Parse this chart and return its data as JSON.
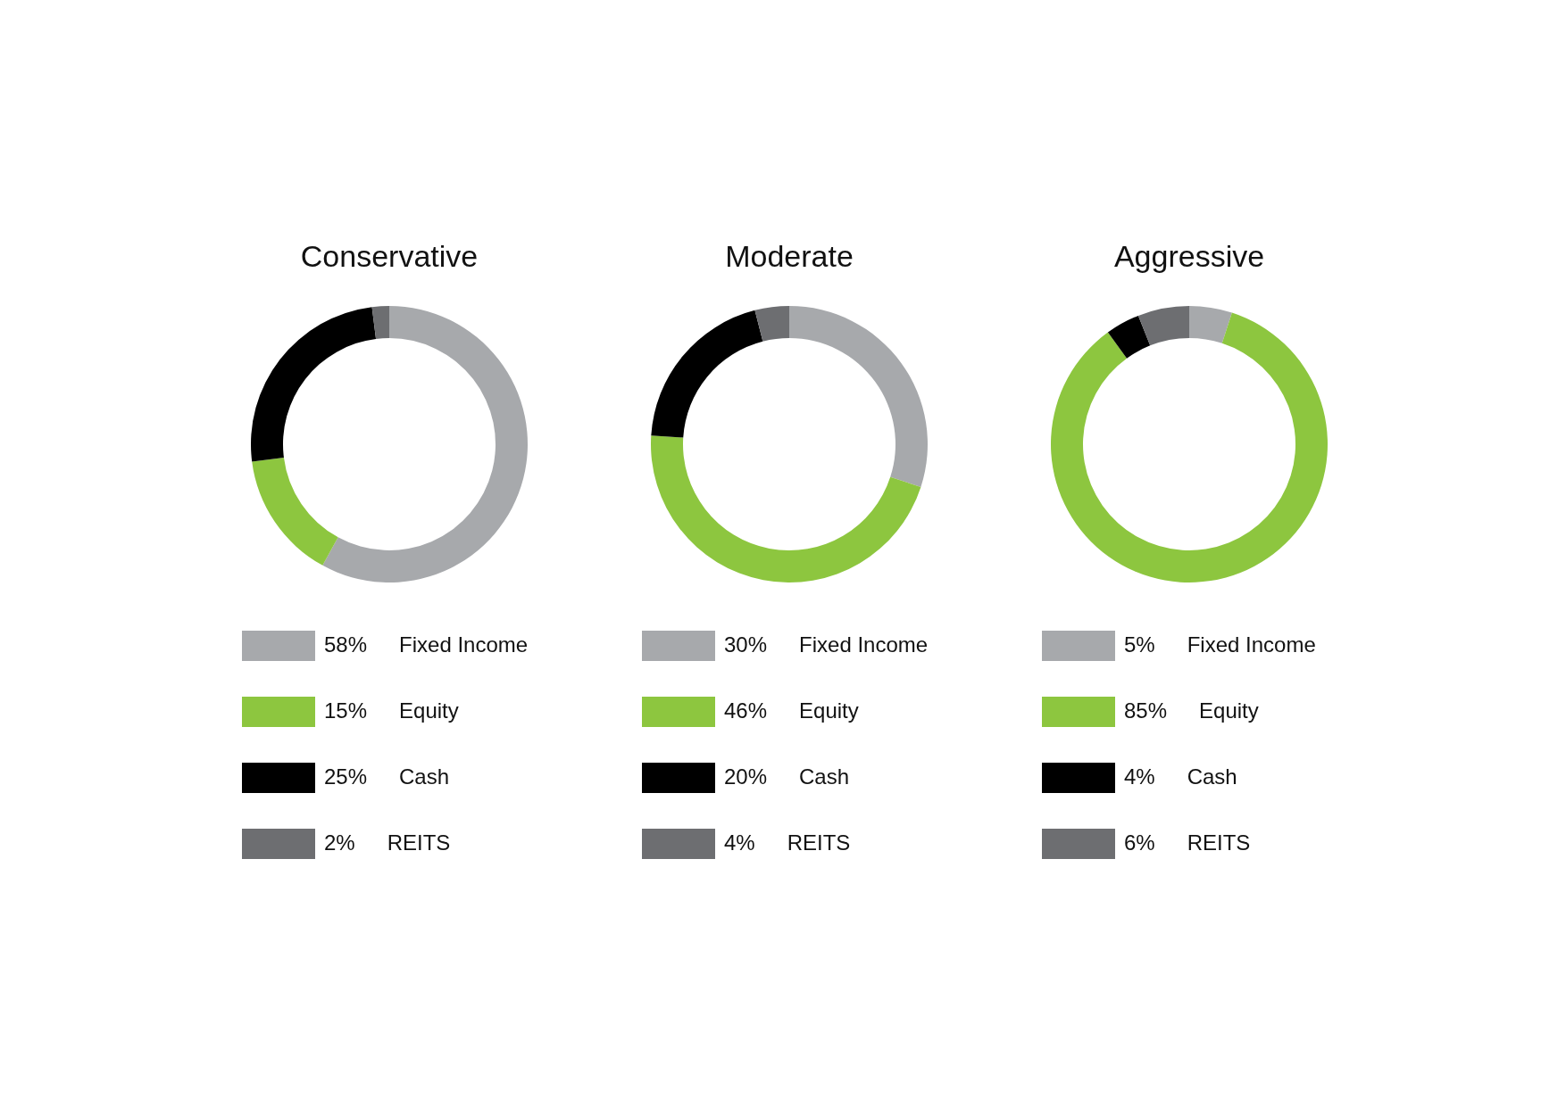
{
  "chart_data": [
    {
      "type": "donut",
      "title": "Conservative",
      "categories": [
        "Fixed Income",
        "Equity",
        "Cash",
        "REITS"
      ],
      "values": [
        58,
        15,
        25,
        2
      ],
      "value_labels": [
        "58%",
        "15%",
        "25%",
        "2%"
      ],
      "colors": [
        "#a7a9ac",
        "#8dc63f",
        "#000000",
        "#6d6e71"
      ],
      "legend": "bottom"
    },
    {
      "type": "donut",
      "title": "Moderate",
      "categories": [
        "Fixed Income",
        "Equity",
        "Cash",
        "REITS"
      ],
      "values": [
        30,
        46,
        20,
        4
      ],
      "value_labels": [
        "30%",
        "46%",
        "20%",
        "4%"
      ],
      "colors": [
        "#a7a9ac",
        "#8dc63f",
        "#000000",
        "#6d6e71"
      ],
      "legend": "bottom"
    },
    {
      "type": "donut",
      "title": "Aggressive",
      "categories": [
        "Fixed Income",
        "Equity",
        "Cash",
        "REITS"
      ],
      "values": [
        5,
        85,
        4,
        6
      ],
      "value_labels": [
        "5%",
        "85%",
        "4%",
        "6%"
      ],
      "colors": [
        "#a7a9ac",
        "#8dc63f",
        "#000000",
        "#6d6e71"
      ],
      "legend": "bottom"
    }
  ]
}
